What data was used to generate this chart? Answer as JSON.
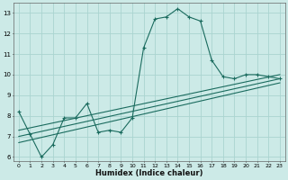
{
  "xlabel": "Humidex (Indice chaleur)",
  "bg_color": "#cceae7",
  "grid_color": "#aad4d0",
  "line_color": "#1a6b5e",
  "xlim": [
    -0.5,
    23.5
  ],
  "ylim": [
    5.8,
    13.5
  ],
  "yticks": [
    6,
    7,
    8,
    9,
    10,
    11,
    12,
    13
  ],
  "xticks": [
    0,
    1,
    2,
    3,
    4,
    5,
    6,
    7,
    8,
    9,
    10,
    11,
    12,
    13,
    14,
    15,
    16,
    17,
    18,
    19,
    20,
    21,
    22,
    23
  ],
  "main_line_x": [
    0,
    1,
    2,
    3,
    4,
    5,
    6,
    7,
    8,
    9,
    10,
    11,
    12,
    13,
    14,
    15,
    16,
    17,
    18,
    19,
    20,
    21,
    22,
    23
  ],
  "main_line_y": [
    8.2,
    7.1,
    6.0,
    6.6,
    7.9,
    7.9,
    8.6,
    7.2,
    7.3,
    7.2,
    7.9,
    11.3,
    12.7,
    12.8,
    13.2,
    12.8,
    12.6,
    10.7,
    9.9,
    9.8,
    10.0,
    10.0,
    9.9,
    9.8
  ],
  "line2_x": [
    0,
    23
  ],
  "line2_y": [
    7.3,
    10.0
  ],
  "line3_x": [
    0,
    23
  ],
  "line3_y": [
    7.0,
    9.8
  ],
  "line4_x": [
    0,
    23
  ],
  "line4_y": [
    6.7,
    9.6
  ]
}
